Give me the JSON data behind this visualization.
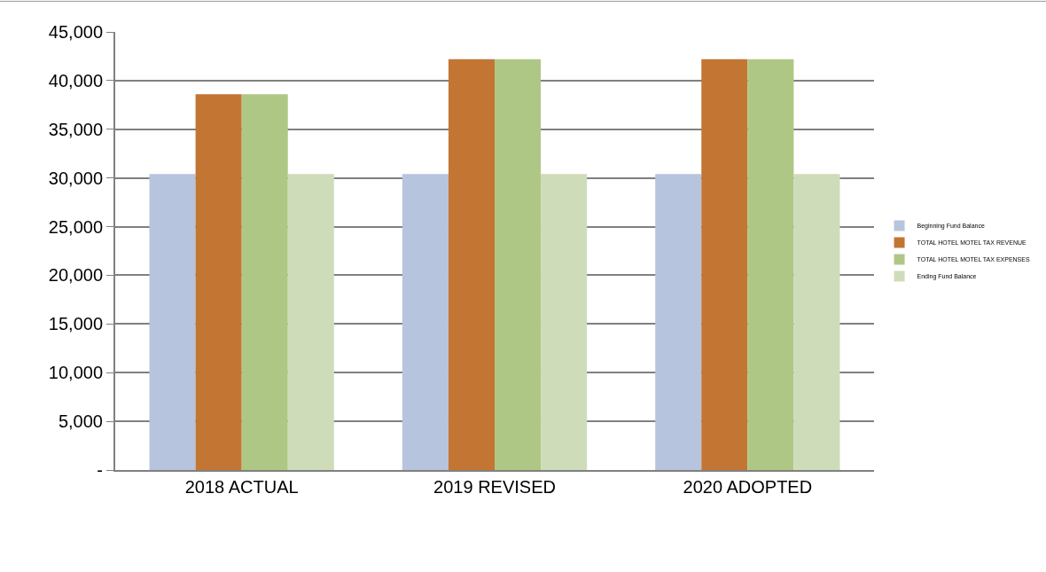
{
  "chart_data": {
    "type": "bar",
    "categories": [
      "2018 ACTUAL",
      "2019 REVISED",
      "2020 ADOPTED"
    ],
    "series": [
      {
        "name": "Beginning Fund Balance",
        "color": "#b7c4de",
        "values": [
          30400,
          30400,
          30400
        ]
      },
      {
        "name": "TOTAL HOTEL MOTEL TAX REVENUE",
        "color": "#c37533",
        "values": [
          38600,
          42200,
          42200
        ]
      },
      {
        "name": "TOTAL HOTEL MOTEL TAX EXPENSES",
        "color": "#afc785",
        "values": [
          38600,
          42200,
          42200
        ]
      },
      {
        "name": "Ending Fund Balance",
        "color": "#cfdcba",
        "values": [
          30400,
          30400,
          30400
        ]
      }
    ],
    "ylim": [
      0,
      45000
    ],
    "yticks": [
      {
        "value": 0,
        "label": "-"
      },
      {
        "value": 5000,
        "label": "5,000"
      },
      {
        "value": 10000,
        "label": "10,000"
      },
      {
        "value": 15000,
        "label": "15,000"
      },
      {
        "value": 20000,
        "label": "20,000"
      },
      {
        "value": 25000,
        "label": "25,000"
      },
      {
        "value": 30000,
        "label": "30,000"
      },
      {
        "value": 35000,
        "label": "35,000"
      },
      {
        "value": 40000,
        "label": "40,000"
      },
      {
        "value": 45000,
        "label": "45,000"
      }
    ],
    "grid": "y",
    "legend": "right"
  }
}
